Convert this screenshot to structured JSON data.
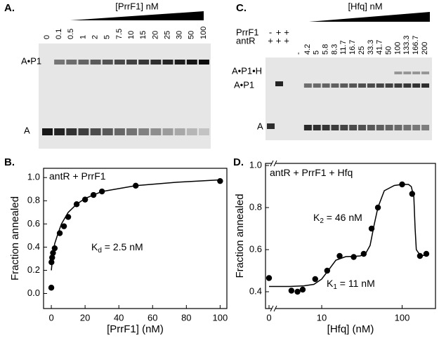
{
  "panels": {
    "A": {
      "label": "A.",
      "title": "[PrrF1] nM",
      "lanes": [
        "0",
        "0.1",
        "0.5",
        "1",
        "2",
        "5",
        "7.5",
        "10",
        "15",
        "20",
        "25",
        "30",
        "50",
        "100"
      ],
      "bands": [
        "A•P1",
        "A"
      ]
    },
    "C": {
      "label": "C.",
      "title": "[Hfq] nM",
      "rows": [
        {
          "name": "PrrF1",
          "marks": [
            "-",
            "+",
            "+"
          ]
        },
        {
          "name": "antR",
          "marks": [
            "+",
            "+",
            "+"
          ]
        }
      ],
      "lanes": [
        "-",
        "4.2",
        "5",
        "5.8",
        "8.3",
        "11.7",
        "16.7",
        "25",
        "33.3",
        "41.7",
        "50",
        "100",
        "133.3",
        "166.7",
        "200"
      ],
      "bands": [
        "A•P1•H",
        "A•P1",
        "A"
      ]
    }
  },
  "chart_data": [
    {
      "type": "scatter",
      "panel_label": "B.",
      "xlabel": "[PrrF1] (nM)",
      "ylabel": "Fraction annealed",
      "xlim": [
        -4.6,
        104
      ],
      "ylim": [
        -0.13,
        1.08
      ],
      "xticks": [
        0,
        20,
        40,
        60,
        80,
        100
      ],
      "yticks": [
        {
          "value": 0,
          "label": "0.0"
        },
        0.2,
        0.4,
        0.6,
        0.8,
        {
          "value": 1,
          "label": "1.0"
        }
      ],
      "annotations": [
        {
          "text": "antR + PrrF1"
        },
        {
          "text": "K",
          "sub": "d",
          "tail": " = 2.5 nM"
        }
      ],
      "series": [
        {
          "mode": "markers",
          "color": "#000000",
          "x": [
            0,
            0.1,
            0.5,
            1,
            2,
            5,
            7.5,
            10,
            15,
            20,
            25,
            30,
            50,
            100
          ],
          "values": [
            0.05,
            0.27,
            0.31,
            0.35,
            0.39,
            0.52,
            0.58,
            0.66,
            0.77,
            0.81,
            0.85,
            0.88,
            0.93,
            0.97
          ]
        },
        {
          "mode": "line",
          "color": "#000000",
          "x": [
            0,
            1,
            2,
            4,
            6,
            10,
            15,
            20,
            30,
            50,
            75,
            100
          ],
          "values": [
            0.2,
            0.35,
            0.43,
            0.52,
            0.6,
            0.7,
            0.77,
            0.82,
            0.88,
            0.93,
            0.96,
            0.98
          ]
        }
      ]
    },
    {
      "type": "scatter",
      "panel_label": "D.",
      "xlabel": "[Hfq] (nM)",
      "ylabel": "Fraction annealed",
      "xscale": "log",
      "x_break": true,
      "xlim": [
        2,
        260
      ],
      "ylim": [
        0.32,
        1.01
      ],
      "xticks": [
        0,
        10,
        100
      ],
      "yticks": [
        0.4,
        0.6,
        0.8,
        {
          "value": 1,
          "label": "1.0"
        }
      ],
      "annotations": [
        {
          "text": "antR + PrrF1 + Hfq"
        },
        {
          "text": "K",
          "sub": "2",
          "tail": " = 46 nM"
        },
        {
          "text": "K",
          "sub": "1",
          "tail": " = 11 nM"
        }
      ],
      "series": [
        {
          "mode": "markers",
          "color": "#000000",
          "x": [
            0,
            4.2,
            5,
            5.8,
            8.3,
            11.7,
            16.7,
            25,
            33.3,
            41.7,
            50,
            100,
            133.3,
            166.7,
            200
          ],
          "values": [
            0.465,
            0.405,
            0.4,
            0.41,
            0.46,
            0.5,
            0.57,
            0.565,
            0.58,
            0.7,
            0.8,
            0.91,
            0.865,
            0.57,
            0.58
          ]
        },
        {
          "mode": "line",
          "color": "#000000",
          "x": [
            0,
            4,
            6,
            8,
            10,
            12,
            15,
            20,
            25,
            30,
            35,
            40,
            45,
            50,
            60,
            80,
            100,
            120,
            130,
            140,
            145,
            150,
            170,
            200
          ],
          "values": [
            0.425,
            0.425,
            0.428,
            0.435,
            0.46,
            0.5,
            0.55,
            0.567,
            0.568,
            0.57,
            0.58,
            0.62,
            0.72,
            0.8,
            0.88,
            0.905,
            0.91,
            0.91,
            0.9,
            0.85,
            0.7,
            0.6,
            0.57,
            0.575
          ]
        }
      ]
    }
  ]
}
